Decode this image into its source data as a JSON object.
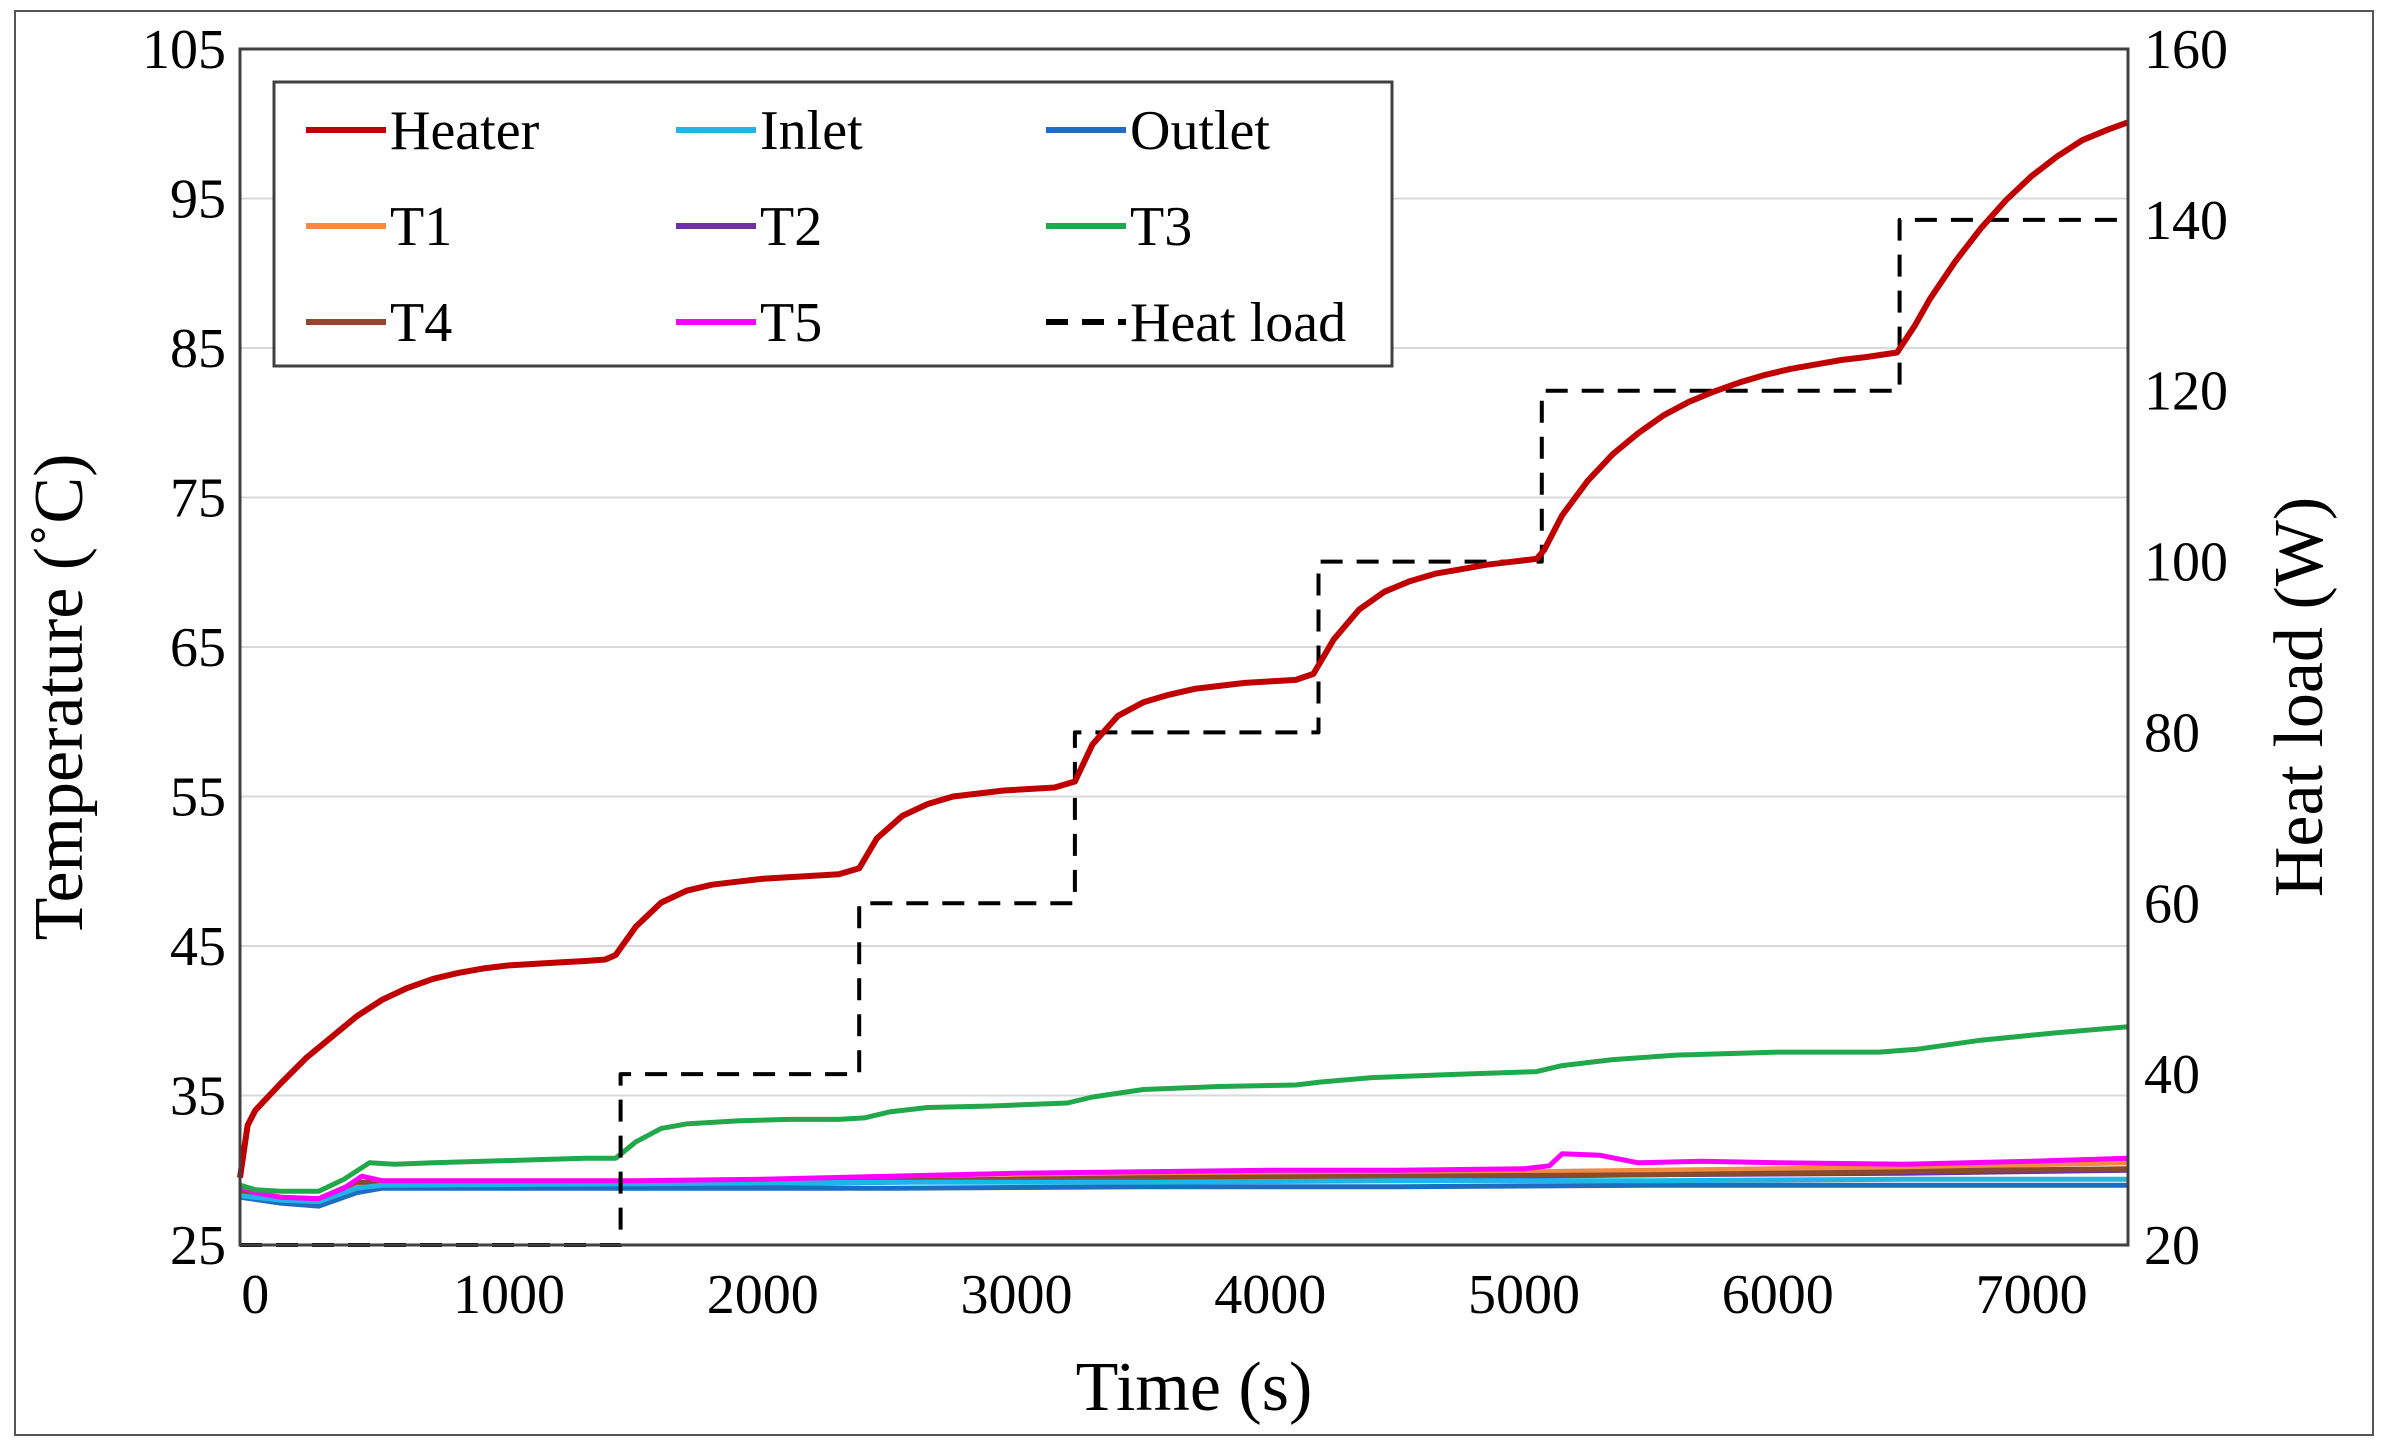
{
  "chart_data": {
    "type": "line",
    "title": "",
    "xlabel": "Time (s)",
    "ylabel": "Temperature (˚C)",
    "y2label": "Heat load (W)",
    "xlim": [
      -60,
      7380
    ],
    "ylim": [
      25,
      105
    ],
    "y2lim": [
      20,
      160
    ],
    "xticks": [
      0,
      1000,
      2000,
      3000,
      4000,
      5000,
      6000,
      7000
    ],
    "yticks": [
      25,
      35,
      45,
      55,
      65,
      75,
      85,
      95,
      105
    ],
    "y2ticks": [
      20,
      40,
      60,
      80,
      100,
      120,
      140,
      160
    ],
    "grid": "horizontal",
    "legend_position": "top-left",
    "legend_columns": 3,
    "series": [
      {
        "name": "Heater",
        "color": "#C00000",
        "style": "solid",
        "axis": "left",
        "points": [
          [
            -60,
            29.5
          ],
          [
            -30,
            33
          ],
          [
            0,
            34
          ],
          [
            100,
            35.8
          ],
          [
            200,
            37.5
          ],
          [
            300,
            38.9
          ],
          [
            400,
            40.3
          ],
          [
            500,
            41.4
          ],
          [
            600,
            42.2
          ],
          [
            700,
            42.8
          ],
          [
            800,
            43.2
          ],
          [
            900,
            43.5
          ],
          [
            1000,
            43.7
          ],
          [
            1100,
            43.8
          ],
          [
            1200,
            43.9
          ],
          [
            1300,
            44
          ],
          [
            1380,
            44.1
          ],
          [
            1420,
            44.4
          ],
          [
            1500,
            46.3
          ],
          [
            1600,
            47.9
          ],
          [
            1700,
            48.7
          ],
          [
            1800,
            49.1
          ],
          [
            1900,
            49.3
          ],
          [
            2000,
            49.5
          ],
          [
            2100,
            49.6
          ],
          [
            2200,
            49.7
          ],
          [
            2300,
            49.8
          ],
          [
            2380,
            50.2
          ],
          [
            2450,
            52.2
          ],
          [
            2550,
            53.7
          ],
          [
            2650,
            54.5
          ],
          [
            2750,
            55
          ],
          [
            2850,
            55.2
          ],
          [
            2950,
            55.4
          ],
          [
            3050,
            55.5
          ],
          [
            3150,
            55.6
          ],
          [
            3230,
            56
          ],
          [
            3300,
            58.5
          ],
          [
            3400,
            60.4
          ],
          [
            3500,
            61.3
          ],
          [
            3600,
            61.8
          ],
          [
            3700,
            62.2
          ],
          [
            3800,
            62.4
          ],
          [
            3900,
            62.6
          ],
          [
            4000,
            62.7
          ],
          [
            4100,
            62.8
          ],
          [
            4170,
            63.2
          ],
          [
            4250,
            65.5
          ],
          [
            4350,
            67.5
          ],
          [
            4450,
            68.7
          ],
          [
            4550,
            69.4
          ],
          [
            4650,
            69.9
          ],
          [
            4750,
            70.2
          ],
          [
            4850,
            70.5
          ],
          [
            4950,
            70.7
          ],
          [
            5050,
            70.9
          ],
          [
            5080,
            71.5
          ],
          [
            5150,
            73.8
          ],
          [
            5250,
            76.1
          ],
          [
            5350,
            77.9
          ],
          [
            5450,
            79.3
          ],
          [
            5550,
            80.5
          ],
          [
            5650,
            81.4
          ],
          [
            5750,
            82.1
          ],
          [
            5850,
            82.7
          ],
          [
            5950,
            83.2
          ],
          [
            6050,
            83.6
          ],
          [
            6150,
            83.9
          ],
          [
            6250,
            84.2
          ],
          [
            6350,
            84.4
          ],
          [
            6470,
            84.7
          ],
          [
            6540,
            86.5
          ],
          [
            6600,
            88.3
          ],
          [
            6700,
            90.8
          ],
          [
            6800,
            93
          ],
          [
            6900,
            94.9
          ],
          [
            7000,
            96.5
          ],
          [
            7100,
            97.8
          ],
          [
            7200,
            98.9
          ],
          [
            7300,
            99.6
          ],
          [
            7380,
            100.1
          ]
        ]
      },
      {
        "name": "Inlet",
        "color": "#1FB5E8",
        "style": "solid",
        "axis": "left",
        "points": [
          [
            -60,
            28.3
          ],
          [
            100,
            28
          ],
          [
            250,
            27.9
          ],
          [
            400,
            28.8
          ],
          [
            500,
            29
          ],
          [
            1500,
            29.1
          ],
          [
            2500,
            29.2
          ],
          [
            3500,
            29.2
          ],
          [
            4500,
            29.3
          ],
          [
            5500,
            29.3
          ],
          [
            6500,
            29.4
          ],
          [
            7380,
            29.4
          ]
        ]
      },
      {
        "name": "Outlet",
        "color": "#1F6DC0",
        "style": "solid",
        "axis": "left",
        "points": [
          [
            -60,
            28.2
          ],
          [
            100,
            27.8
          ],
          [
            250,
            27.6
          ],
          [
            400,
            28.5
          ],
          [
            500,
            28.8
          ],
          [
            1500,
            28.8
          ],
          [
            2500,
            28.8
          ],
          [
            3500,
            28.9
          ],
          [
            4500,
            28.9
          ],
          [
            5500,
            29
          ],
          [
            6500,
            29
          ],
          [
            7380,
            29
          ]
        ]
      },
      {
        "name": "T1",
        "color": "#F28C45",
        "style": "solid",
        "axis": "left",
        "points": [
          [
            -60,
            28.5
          ],
          [
            100,
            28.1
          ],
          [
            250,
            28
          ],
          [
            400,
            29.1
          ],
          [
            500,
            29.1
          ],
          [
            1500,
            29.1
          ],
          [
            2500,
            29.3
          ],
          [
            3500,
            29.6
          ],
          [
            4500,
            29.8
          ],
          [
            5500,
            30
          ],
          [
            6500,
            30.2
          ],
          [
            7380,
            30.5
          ]
        ]
      },
      {
        "name": "T2",
        "color": "#7030A0",
        "style": "solid",
        "axis": "left",
        "points": [
          [
            -60,
            28.4
          ],
          [
            100,
            28
          ],
          [
            250,
            27.9
          ],
          [
            400,
            29
          ],
          [
            500,
            29
          ],
          [
            1500,
            29
          ],
          [
            2500,
            29.2
          ],
          [
            3500,
            29.4
          ],
          [
            4500,
            29.5
          ],
          [
            5500,
            29.7
          ],
          [
            6500,
            29.8
          ],
          [
            7380,
            30
          ]
        ]
      },
      {
        "name": "T3",
        "color": "#21A84A",
        "style": "solid",
        "axis": "left",
        "points": [
          [
            -60,
            29
          ],
          [
            0,
            28.7
          ],
          [
            100,
            28.6
          ],
          [
            250,
            28.6
          ],
          [
            350,
            29.4
          ],
          [
            450,
            30.5
          ],
          [
            550,
            30.4
          ],
          [
            700,
            30.5
          ],
          [
            900,
            30.6
          ],
          [
            1100,
            30.7
          ],
          [
            1300,
            30.8
          ],
          [
            1420,
            30.8
          ],
          [
            1500,
            31.9
          ],
          [
            1600,
            32.8
          ],
          [
            1700,
            33.1
          ],
          [
            1900,
            33.3
          ],
          [
            2100,
            33.4
          ],
          [
            2300,
            33.4
          ],
          [
            2400,
            33.5
          ],
          [
            2500,
            33.9
          ],
          [
            2650,
            34.2
          ],
          [
            2900,
            34.3
          ],
          [
            3200,
            34.5
          ],
          [
            3300,
            34.9
          ],
          [
            3500,
            35.4
          ],
          [
            3800,
            35.6
          ],
          [
            4100,
            35.7
          ],
          [
            4200,
            35.9
          ],
          [
            4400,
            36.2
          ],
          [
            4700,
            36.4
          ],
          [
            5050,
            36.6
          ],
          [
            5150,
            37
          ],
          [
            5350,
            37.4
          ],
          [
            5600,
            37.7
          ],
          [
            6000,
            37.9
          ],
          [
            6400,
            37.9
          ],
          [
            6550,
            38.1
          ],
          [
            6800,
            38.7
          ],
          [
            7100,
            39.2
          ],
          [
            7380,
            39.6
          ]
        ]
      },
      {
        "name": "T4",
        "color": "#8B4A2B",
        "style": "solid",
        "axis": "left",
        "points": [
          [
            -60,
            28.6
          ],
          [
            100,
            28.2
          ],
          [
            250,
            28.1
          ],
          [
            400,
            29.2
          ],
          [
            500,
            29.2
          ],
          [
            1500,
            29.2
          ],
          [
            2500,
            29.3
          ],
          [
            3500,
            29.5
          ],
          [
            4500,
            29.6
          ],
          [
            5500,
            29.7
          ],
          [
            6500,
            29.9
          ],
          [
            6800,
            30
          ],
          [
            7380,
            30.1
          ]
        ]
      },
      {
        "name": "T5",
        "color": "#FF00FF",
        "style": "solid",
        "axis": "left",
        "points": [
          [
            -60,
            28.9
          ],
          [
            0,
            28.5
          ],
          [
            100,
            28.2
          ],
          [
            250,
            28.1
          ],
          [
            350,
            28.8
          ],
          [
            420,
            29.6
          ],
          [
            500,
            29.3
          ],
          [
            800,
            29.3
          ],
          [
            1500,
            29.3
          ],
          [
            2000,
            29.4
          ],
          [
            2500,
            29.6
          ],
          [
            3000,
            29.8
          ],
          [
            3500,
            29.9
          ],
          [
            4000,
            30
          ],
          [
            4500,
            30
          ],
          [
            5000,
            30.1
          ],
          [
            5100,
            30.3
          ],
          [
            5150,
            31.1
          ],
          [
            5300,
            31
          ],
          [
            5450,
            30.5
          ],
          [
            5700,
            30.6
          ],
          [
            6000,
            30.5
          ],
          [
            6500,
            30.4
          ],
          [
            7000,
            30.6
          ],
          [
            7380,
            30.8
          ]
        ]
      },
      {
        "name": "Heat load",
        "color": "#000000",
        "style": "dashed",
        "axis": "right",
        "points": [
          [
            -60,
            20
          ],
          [
            1440,
            20
          ],
          [
            1440,
            40
          ],
          [
            2380,
            40
          ],
          [
            2380,
            60
          ],
          [
            3230,
            60
          ],
          [
            3230,
            80
          ],
          [
            4190,
            80
          ],
          [
            4190,
            100
          ],
          [
            5070,
            100
          ],
          [
            5070,
            120
          ],
          [
            6480,
            120
          ],
          [
            6480,
            140
          ],
          [
            7380,
            140
          ]
        ]
      }
    ]
  }
}
